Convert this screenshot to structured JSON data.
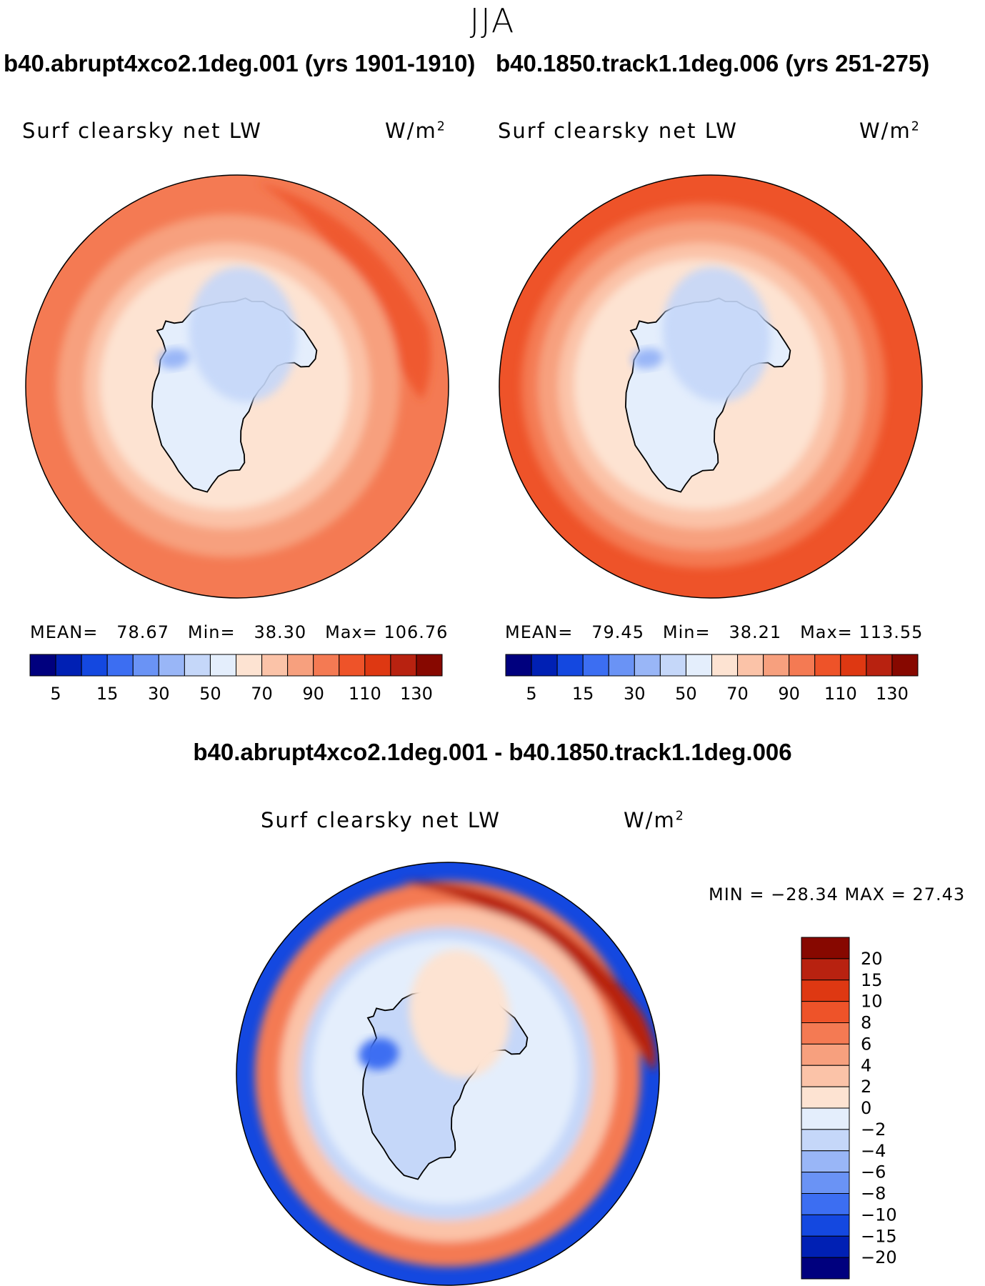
{
  "figure": {
    "season": "JJA",
    "panel_left_title": "b40.abrupt4xco2.1deg.001 (yrs 1901-1910)",
    "panel_right_title": "b40.1850.track1.1deg.006 (yrs 251-275)",
    "diff_title": "b40.abrupt4xco2.1deg.001 - b40.1850.track1.1deg.006",
    "variable": "Surf clearsky net LW",
    "units_base": "W/m",
    "units_exp": "2"
  },
  "colors": {
    "abs_palette": [
      "#00007e",
      "#0020b4",
      "#1448e0",
      "#3c6ef2",
      "#6a93f5",
      "#99b6f7",
      "#c5d7f9",
      "#e4eefc",
      "#fde3d2",
      "#fbc3a8",
      "#f7a07e",
      "#f47a53",
      "#ee5329",
      "#de3812",
      "#b82210",
      "#870800"
    ],
    "diff_palette": [
      "#00007e",
      "#0020b4",
      "#1448e0",
      "#3c6ef2",
      "#6a93f5",
      "#99b6f7",
      "#c5d7f9",
      "#e4eefc",
      "#fde3d2",
      "#fbc3a8",
      "#f7a07e",
      "#f47a53",
      "#ee5329",
      "#de3812",
      "#b82210",
      "#870800"
    ]
  },
  "chart_data": [
    {
      "type": "heatmap",
      "projection": "south-polar-stereographic",
      "title": "b40.abrupt4xco2.1deg.001 (yrs 1901-1910)",
      "variable": "Surf clearsky net LW",
      "units": "W/m^2",
      "mean_label": "MEAN=",
      "mean": "78.67",
      "min_label": "Min=",
      "min": "38.30",
      "max_label": "Max=",
      "max": "106.76",
      "colorbar_levels": [
        0,
        5,
        10,
        15,
        20,
        30,
        40,
        50,
        60,
        70,
        80,
        90,
        100,
        110,
        120,
        130
      ],
      "colorbar_tick_labels": [
        "5",
        "15",
        "30",
        "50",
        "70",
        "90",
        "110",
        "130"
      ]
    },
    {
      "type": "heatmap",
      "projection": "south-polar-stereographic",
      "title": "b40.1850.track1.1deg.006 (yrs 251-275)",
      "variable": "Surf clearsky net LW",
      "units": "W/m^2",
      "mean_label": "MEAN=",
      "mean": "79.45",
      "min_label": "Min=",
      "min": "38.21",
      "max_label": "Max=",
      "max": "113.55",
      "colorbar_levels": [
        0,
        5,
        10,
        15,
        20,
        30,
        40,
        50,
        60,
        70,
        80,
        90,
        100,
        110,
        120,
        130
      ],
      "colorbar_tick_labels": [
        "5",
        "15",
        "30",
        "50",
        "70",
        "90",
        "110",
        "130"
      ]
    },
    {
      "type": "heatmap",
      "projection": "south-polar-stereographic",
      "title": "b40.abrupt4xco2.1deg.001 - b40.1850.track1.1deg.006",
      "variable": "Surf clearsky net LW",
      "units": "W/m^2",
      "min_max_label": "MIN = −28.34 MAX =   27.43",
      "min": -28.34,
      "max": 27.43,
      "colorbar_levels": [
        -20,
        -15,
        -10,
        -8,
        -6,
        -4,
        -2,
        0,
        2,
        4,
        6,
        8,
        10,
        15,
        20
      ],
      "colorbar_tick_labels": [
        "20",
        "15",
        "10",
        "8",
        "6",
        "4",
        "2",
        "0",
        "−2",
        "−4",
        "−6",
        "−8",
        "−10",
        "−15",
        "−20"
      ]
    }
  ]
}
